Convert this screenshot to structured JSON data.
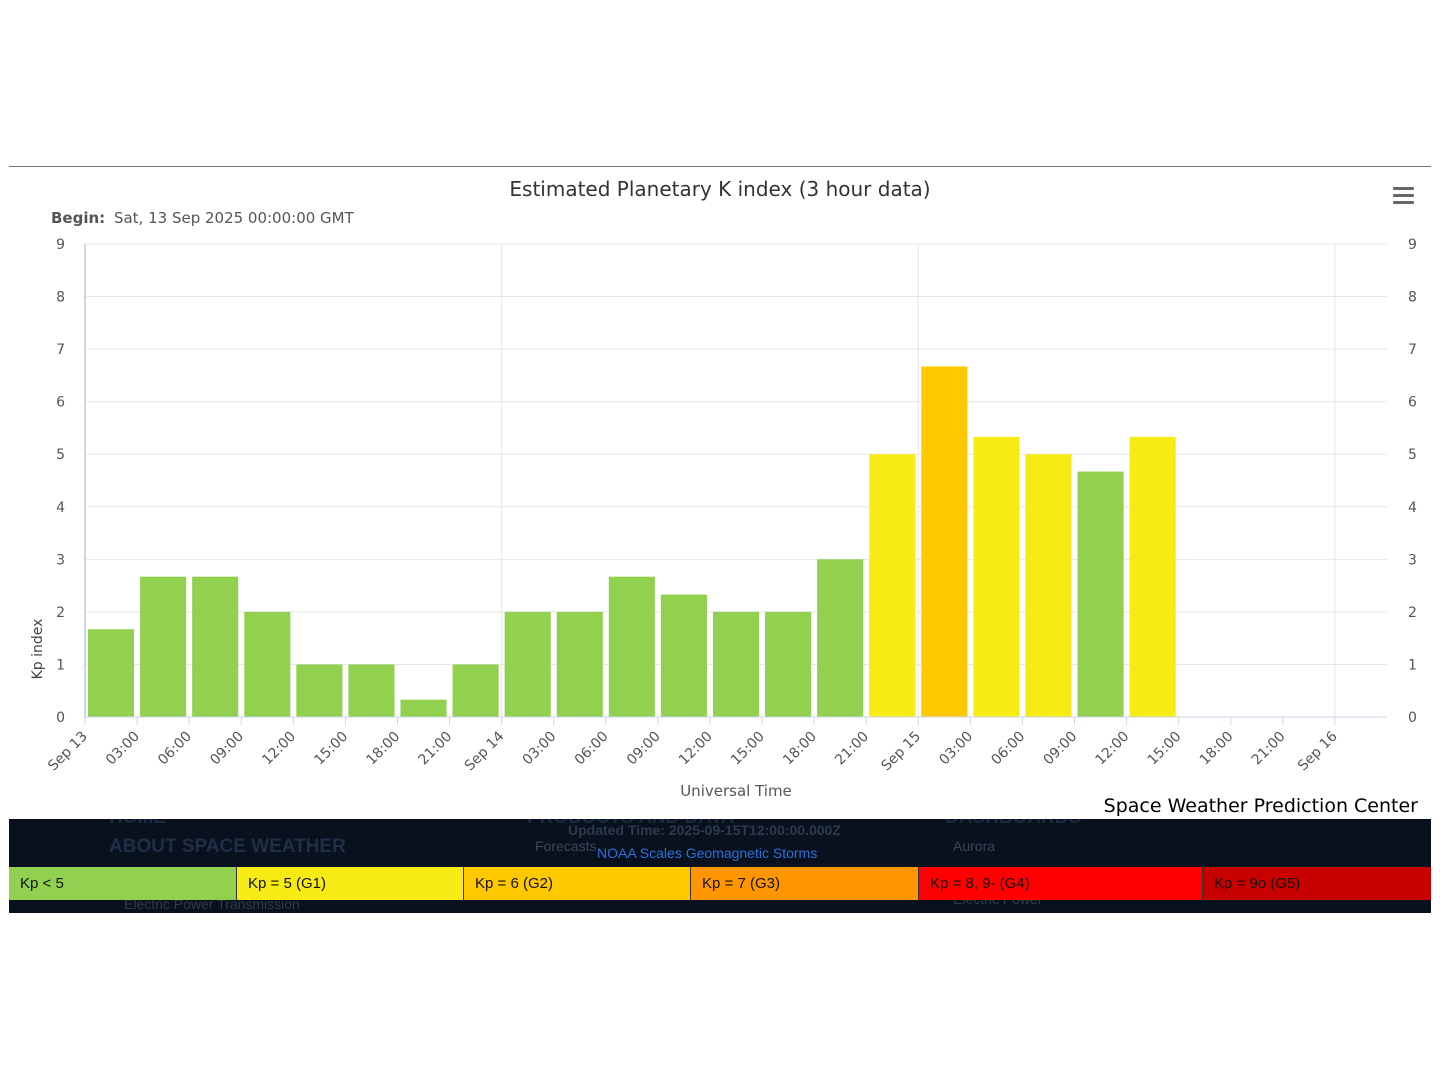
{
  "chart_data": {
    "type": "bar",
    "title": "Estimated Planetary K index (3 hour data)",
    "subtitle_label": "Begin:",
    "subtitle_value": "Sat, 13 Sep 2025 00:00:00 GMT",
    "xlabel": "Universal Time",
    "ylabel": "Kp index",
    "ylim": [
      0,
      9
    ],
    "yticks": [
      "0",
      "1",
      "2",
      "3",
      "4",
      "5",
      "6",
      "7",
      "8",
      "9"
    ],
    "xticks": [
      "Sep 13",
      "03:00",
      "06:00",
      "09:00",
      "12:00",
      "15:00",
      "18:00",
      "21:00",
      "Sep 14",
      "03:00",
      "06:00",
      "09:00",
      "12:00",
      "15:00",
      "18:00",
      "21:00",
      "Sep 15",
      "03:00",
      "06:00",
      "09:00",
      "12:00",
      "15:00",
      "18:00",
      "21:00",
      "Sep 16"
    ],
    "x_hours": [
      0,
      3,
      6,
      9,
      12,
      15,
      18,
      21,
      24,
      27,
      30,
      33,
      36,
      39,
      42,
      45,
      48,
      51,
      54,
      57,
      60
    ],
    "values": [
      1.67,
      2.67,
      2.67,
      2.0,
      1.0,
      1.0,
      0.33,
      1.0,
      2.0,
      2.0,
      2.67,
      2.33,
      2.0,
      2.0,
      3.0,
      5.0,
      6.67,
      5.33,
      5.0,
      4.67,
      5.33
    ],
    "grid": true,
    "colors": {
      "below5": "#92d050",
      "g1": "#f6eb14",
      "g2": "#ffc800",
      "g3": "#ff9600",
      "g4": "#ff0000",
      "g5": "#c80000"
    }
  },
  "credits": "Space Weather Prediction Center",
  "menu_icon": "hamburger-menu-icon",
  "footer": {
    "updated": "Updated Time: 2025-09-15T12:00:00.000Z",
    "scales_link": "NOAA Scales Geomagnetic Storms",
    "bg_home": "HOME",
    "bg_about": "ABOUT SPACE WEATHER",
    "bg_electric": "Electric Power Transmission",
    "bg_products": "PRODUCTS AND DATA",
    "bg_forecasts": "Forecasts",
    "bg_dashboards": "DASHBOARDS",
    "bg_aurora": "Aurora",
    "bg_electric2": "Electric Power"
  },
  "scale_bar": [
    {
      "label": "Kp < 5",
      "color": "#92d050"
    },
    {
      "label": "Kp = 5 (G1)",
      "color": "#f6eb14"
    },
    {
      "label": "Kp = 6 (G2)",
      "color": "#ffc800"
    },
    {
      "label": "Kp = 7 (G3)",
      "color": "#ff9600"
    },
    {
      "label": "Kp = 8, 9- (G4)",
      "color": "#ff0000"
    },
    {
      "label": "Kp = 9o (G5)",
      "color": "#c80000"
    }
  ]
}
